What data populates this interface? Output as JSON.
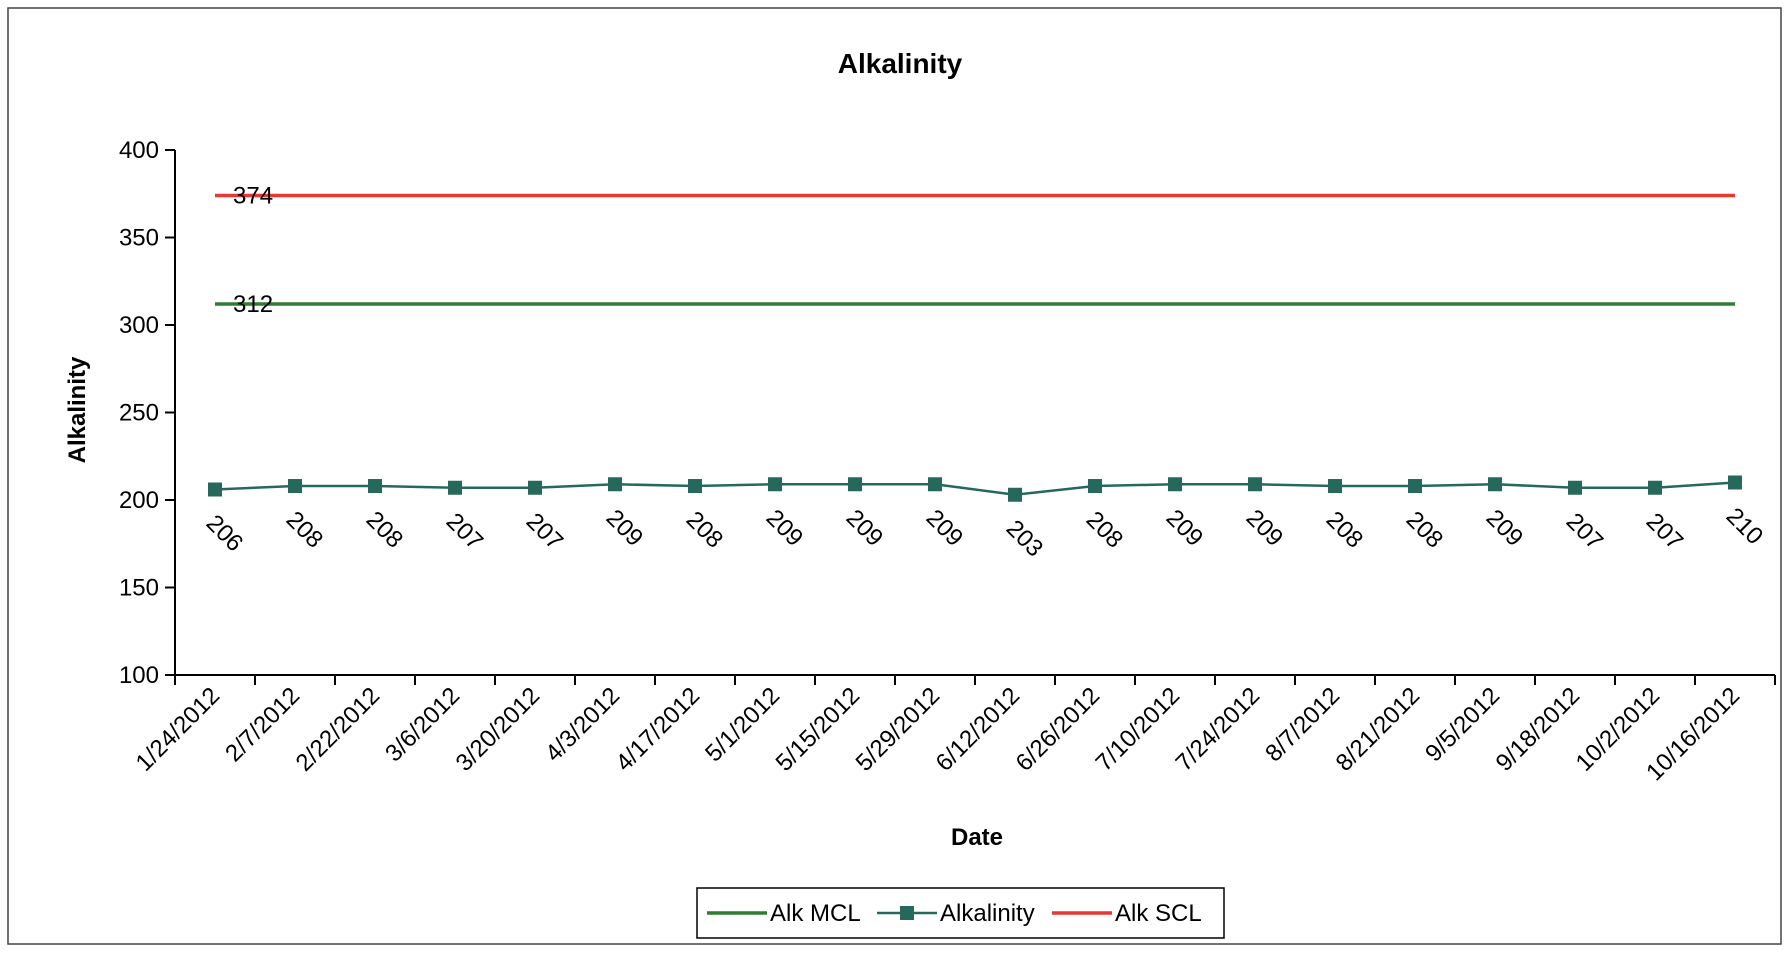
{
  "chart_data": {
    "type": "line",
    "title": "Alkalinity",
    "xlabel": "Date",
    "ylabel": "Alkalinity",
    "ylim": [
      100,
      400
    ],
    "yticks": [
      100,
      150,
      200,
      250,
      300,
      350,
      400
    ],
    "grid": false,
    "legend_position": "bottom-center",
    "categories": [
      "1/24/2012",
      "2/7/2012",
      "2/22/2012",
      "3/6/2012",
      "3/20/2012",
      "4/3/2012",
      "4/17/2012",
      "5/1/2012",
      "5/15/2012",
      "5/29/2012",
      "6/12/2012",
      "6/26/2012",
      "7/10/2012",
      "7/24/2012",
      "8/7/2012",
      "8/21/2012",
      "9/5/2012",
      "9/18/2012",
      "10/2/2012",
      "10/16/2012"
    ],
    "series": [
      {
        "name": "Alk MCL",
        "color": "#2e7d32",
        "marker": "none",
        "values": [
          312,
          312,
          312,
          312,
          312,
          312,
          312,
          312,
          312,
          312,
          312,
          312,
          312,
          312,
          312,
          312,
          312,
          312,
          312,
          312
        ]
      },
      {
        "name": "Alkalinity",
        "color": "#26695c",
        "marker": "square",
        "values": [
          206,
          208,
          208,
          207,
          207,
          209,
          208,
          209,
          209,
          209,
          203,
          208,
          209,
          209,
          208,
          208,
          209,
          207,
          207,
          210
        ]
      },
      {
        "name": "Alk SCL",
        "color": "#e53935",
        "marker": "none",
        "values": [
          374,
          374,
          374,
          374,
          374,
          374,
          374,
          374,
          374,
          374,
          374,
          374,
          374,
          374,
          374,
          374,
          374,
          374,
          374,
          374
        ]
      }
    ],
    "annotations": [
      {
        "series": "Alk SCL",
        "index": 0,
        "text": "374"
      },
      {
        "series": "Alk MCL",
        "index": 0,
        "text": "312"
      }
    ],
    "data_labels": {
      "series": "Alkalinity",
      "labels": [
        "206",
        "208",
        "208",
        "207",
        "207",
        "209",
        "208",
        "209",
        "209",
        "209",
        "203",
        "208",
        "209",
        "209",
        "208",
        "208",
        "209",
        "207",
        "207",
        "210"
      ]
    }
  }
}
